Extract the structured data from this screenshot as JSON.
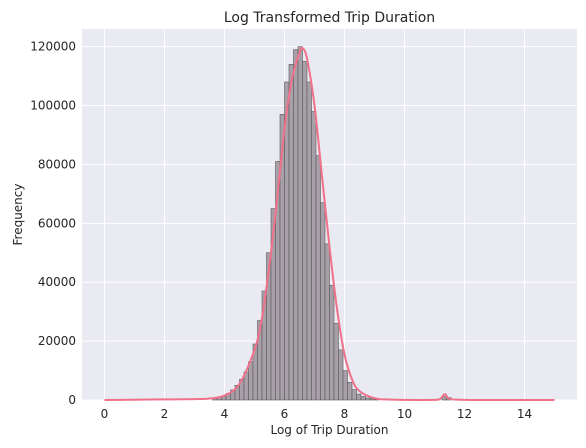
{
  "chart_data": {
    "type": "bar",
    "title": "Log Transformed Trip Duration",
    "xlabel": "Log of Trip Duration",
    "ylabel": "Frequency",
    "xlim": [
      -0.75,
      15.75
    ],
    "ylim": [
      0,
      126000
    ],
    "x_ticks": [
      0,
      2,
      4,
      6,
      8,
      10,
      12,
      14
    ],
    "y_ticks": [
      0,
      20000,
      40000,
      60000,
      80000,
      100000,
      120000
    ],
    "grid": true,
    "bin_width": 0.15,
    "histogram": {
      "x_start": [
        3.6,
        3.75,
        3.9,
        4.05,
        4.2,
        4.35,
        4.5,
        4.65,
        4.8,
        4.95,
        5.1,
        5.25,
        5.4,
        5.55,
        5.7,
        5.85,
        6.0,
        6.15,
        6.3,
        6.45,
        6.6,
        6.75,
        6.9,
        7.05,
        7.2,
        7.35,
        7.5,
        7.65,
        7.8,
        7.95,
        8.1,
        8.25,
        8.4,
        8.55,
        8.7,
        8.85,
        9.0,
        11.25,
        11.4
      ],
      "values": [
        500,
        900,
        1400,
        2200,
        3400,
        5000,
        7000,
        9500,
        13000,
        19000,
        27000,
        37000,
        50000,
        65000,
        81000,
        97000,
        108000,
        114000,
        119000,
        120000,
        115000,
        108000,
        98000,
        83000,
        67000,
        53000,
        39000,
        26000,
        17000,
        10000,
        6000,
        3500,
        2000,
        1200,
        700,
        400,
        200,
        1200,
        800
      ]
    },
    "kde": {
      "x": [
        0,
        1,
        2,
        3,
        3.5,
        4,
        4.5,
        5,
        5.25,
        5.5,
        5.75,
        6,
        6.25,
        6.5,
        6.6,
        6.75,
        7,
        7.25,
        7.5,
        7.75,
        8,
        8.25,
        8.5,
        9,
        9.5,
        10,
        11,
        11.2,
        11.35,
        11.5,
        12,
        13,
        14,
        15
      ],
      "y": [
        0,
        100,
        200,
        300,
        500,
        1500,
        5500,
        17000,
        28000,
        46000,
        68000,
        92000,
        109000,
        118000,
        119500,
        116000,
        100000,
        76000,
        52000,
        31000,
        15500,
        7000,
        3000,
        600,
        150,
        50,
        40,
        500,
        2000,
        400,
        50,
        0,
        0,
        0
      ]
    },
    "colors": {
      "bar_fill": "#a7a0a8",
      "bar_edge": "#5a5a5a",
      "kde_line": "#f07189",
      "grid": "#ffffff",
      "plot_bg": "#eaeaf2"
    }
  }
}
